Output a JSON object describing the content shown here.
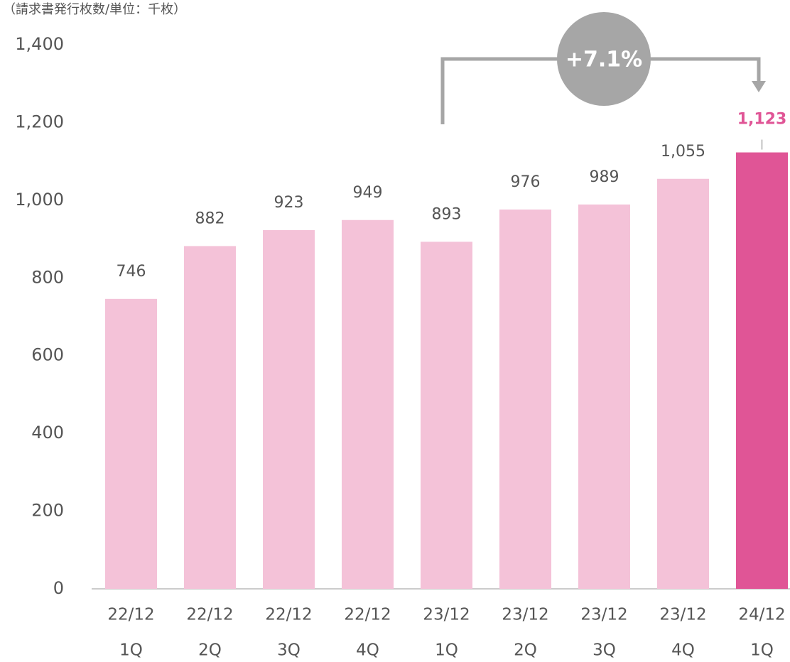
{
  "chart_data": {
    "type": "bar",
    "subtitle": "（請求書発行枚数/単位：千枚）",
    "categories": [
      [
        "22/12",
        "1Q"
      ],
      [
        "22/12",
        "2Q"
      ],
      [
        "22/12",
        "3Q"
      ],
      [
        "22/12",
        "4Q"
      ],
      [
        "23/12",
        "1Q"
      ],
      [
        "23/12",
        "2Q"
      ],
      [
        "23/12",
        "3Q"
      ],
      [
        "23/12",
        "4Q"
      ],
      [
        "24/12",
        "1Q"
      ]
    ],
    "values": [
      746,
      882,
      923,
      949,
      893,
      976,
      989,
      1055,
      1123
    ],
    "value_labels": [
      "746",
      "882",
      "923",
      "949",
      "893",
      "976",
      "989",
      "1,055",
      "1,123"
    ],
    "colors": [
      "#f4c2d8",
      "#f4c2d8",
      "#f4c2d8",
      "#f4c2d8",
      "#f4c2d8",
      "#f4c2d8",
      "#f4c2d8",
      "#f4c2d8",
      "#e05596"
    ],
    "ylim": [
      0,
      1400
    ],
    "yticks": [
      0,
      200,
      400,
      600,
      800,
      {
        "value": 1000,
        "label": "1,000"
      },
      {
        "value": 1200,
        "label": "1,200"
      },
      {
        "value": 1400,
        "label": "1,400"
      }
    ],
    "annotation": "+7.1%"
  }
}
